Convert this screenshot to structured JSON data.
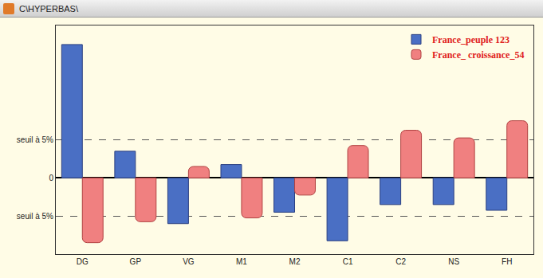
{
  "chart_data": {
    "type": "bar",
    "title": "C\\HYPERBAS\\",
    "categories": [
      "DG",
      "GP",
      "VG",
      "M1",
      "M2",
      "C1",
      "C2",
      "NS",
      "FH"
    ],
    "series": [
      {
        "name": "France_peuple 123",
        "color": "#4a6fc4",
        "values": [
          7.0,
          1.4,
          -2.4,
          0.7,
          -1.8,
          -3.3,
          -1.4,
          -1.4,
          -1.7
        ]
      },
      {
        "name": "France_ croissance_54",
        "color": "#f08080",
        "values": [
          -3.4,
          -2.3,
          0.6,
          -2.1,
          -0.9,
          1.7,
          2.5,
          2.1,
          3.0
        ]
      }
    ],
    "ylim": [
      -4,
      8
    ],
    "yticks": [
      {
        "value": -2,
        "label": "seuil à 5%"
      },
      0,
      {
        "value": 2,
        "label": "seuil à 5%"
      }
    ],
    "grid": true,
    "legend": "top right"
  }
}
